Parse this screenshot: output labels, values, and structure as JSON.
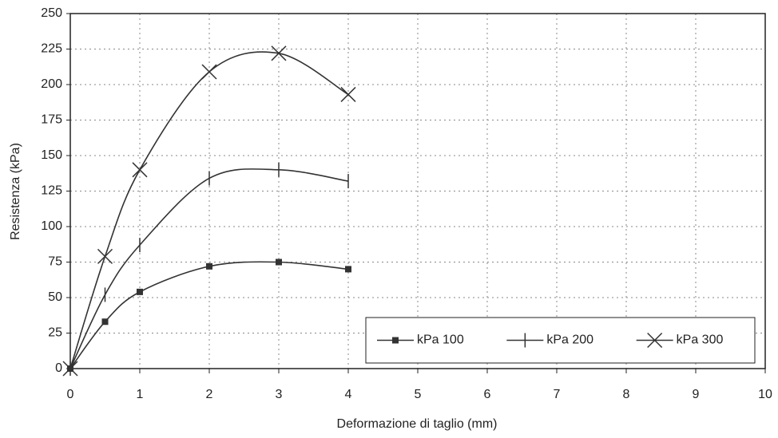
{
  "chart_data": {
    "type": "line",
    "x_label": "Deformazione di taglio (mm)",
    "y_label": "Resistenza (kPa)",
    "x": [
      0,
      0.5,
      1,
      2,
      3,
      4
    ],
    "series": [
      {
        "name": "kPa 100",
        "color": "#333333",
        "marker": "square",
        "values": [
          0,
          33,
          54,
          72,
          75,
          70
        ]
      },
      {
        "name": "kPa 200",
        "color": "#333333",
        "marker": "plus",
        "values": [
          0,
          52,
          87,
          134,
          140,
          132
        ]
      },
      {
        "name": "kPa 300",
        "color": "#333333",
        "marker": "x",
        "values": [
          0,
          79,
          140,
          209,
          222,
          193
        ]
      }
    ],
    "xlim": [
      0,
      10
    ],
    "xticks": [
      0,
      1,
      2,
      3,
      4,
      5,
      6,
      7,
      8,
      9,
      10
    ],
    "ylim": [
      0,
      250
    ],
    "yticks": [
      0,
      25,
      50,
      75,
      100,
      125,
      150,
      175,
      200,
      225,
      250
    ],
    "grid": true,
    "legend": "lower right"
  }
}
